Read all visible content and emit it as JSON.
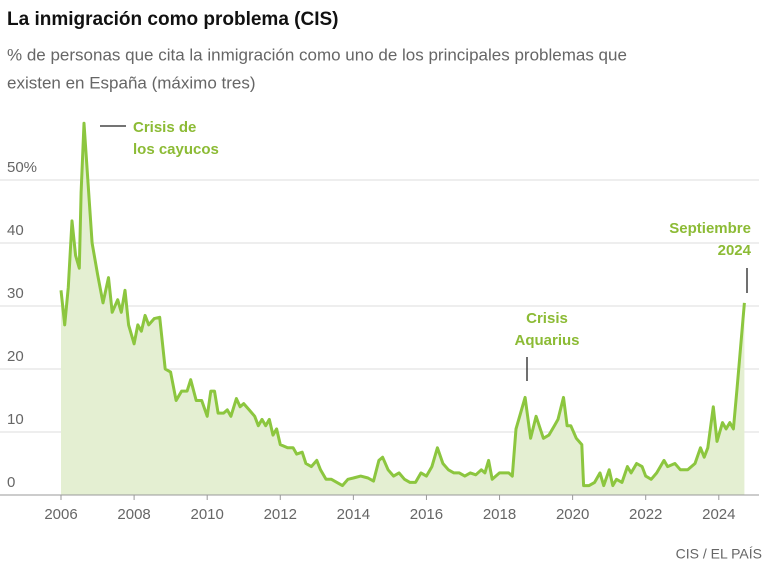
{
  "chart_data": {
    "type": "area",
    "title": "La inmigración como problema (CIS)",
    "subtitle": [
      "% de personas que cita la inmigración como uno de los principales problemas que",
      "existen en España (máximo tres)"
    ],
    "source": "CIS / EL PAÍS",
    "annotations": [
      [
        "Crisis de",
        "los cayucos"
      ],
      [
        "Crisis",
        "Aquarius"
      ],
      [
        "Septiembre",
        "2024"
      ]
    ],
    "color": "#8cc63f",
    "fill": "#e4efd2",
    "grid": true,
    "xlim": [
      2005.8,
      2025.1
    ],
    "xticks": [
      2006,
      2008,
      2010,
      2012,
      2014,
      2016,
      2018,
      2020,
      2022,
      2024
    ],
    "ylim": [
      0,
      62
    ],
    "yticks": [
      0,
      10,
      20,
      30,
      40,
      {
        "value": 50,
        "label": "50%"
      }
    ],
    "x": [
      2006.0,
      2006.1,
      2006.2,
      2006.3,
      2006.4,
      2006.5,
      2006.55,
      2006.63,
      2006.85,
      2007.0,
      2007.15,
      2007.3,
      2007.4,
      2007.55,
      2007.65,
      2007.75,
      2007.85,
      2008.0,
      2008.1,
      2008.2,
      2008.3,
      2008.4,
      2008.55,
      2008.7,
      2008.85,
      2009.0,
      2009.15,
      2009.3,
      2009.45,
      2009.55,
      2009.7,
      2009.85,
      2010.0,
      2010.1,
      2010.2,
      2010.3,
      2010.45,
      2010.55,
      2010.65,
      2010.8,
      2010.9,
      2011.0,
      2011.15,
      2011.3,
      2011.4,
      2011.5,
      2011.6,
      2011.7,
      2011.8,
      2011.9,
      2012.0,
      2012.2,
      2012.35,
      2012.45,
      2012.6,
      2012.7,
      2012.85,
      2013.0,
      2013.1,
      2013.25,
      2013.4,
      2013.55,
      2013.7,
      2013.85,
      2014.0,
      2014.2,
      2014.4,
      2014.55,
      2014.7,
      2014.8,
      2014.95,
      2015.1,
      2015.25,
      2015.4,
      2015.55,
      2015.7,
      2015.85,
      2016.0,
      2016.15,
      2016.3,
      2016.45,
      2016.6,
      2016.75,
      2016.9,
      2017.05,
      2017.2,
      2017.35,
      2017.5,
      2017.6,
      2017.7,
      2017.8,
      2018.0,
      2018.25,
      2018.35,
      2018.45,
      2018.7,
      2018.85,
      2019.0,
      2019.2,
      2019.35,
      2019.5,
      2019.6,
      2019.75,
      2019.85,
      2019.95,
      2020.1,
      2020.25,
      2020.3,
      2020.45,
      2020.6,
      2020.75,
      2020.85,
      2021.0,
      2021.1,
      2021.2,
      2021.35,
      2021.5,
      2021.6,
      2021.75,
      2021.9,
      2022.0,
      2022.15,
      2022.3,
      2022.5,
      2022.6,
      2022.8,
      2022.95,
      2023.15,
      2023.35,
      2023.5,
      2023.6,
      2023.7,
      2023.85,
      2023.95,
      2024.1,
      2024.2,
      2024.3,
      2024.4,
      2024.5,
      2024.7
    ],
    "values": [
      32.5,
      27,
      33,
      43.5,
      38,
      36,
      48,
      59,
      40,
      35,
      30.5,
      34.5,
      29,
      31,
      29,
      32.5,
      27,
      24,
      27,
      26,
      28.5,
      27,
      28,
      28.2,
      20,
      19.5,
      15,
      16.5,
      16.5,
      18.3,
      15,
      15,
      12.5,
      16.5,
      16.5,
      13,
      13,
      13.5,
      12.5,
      15.3,
      14,
      14.5,
      13.5,
      12.5,
      11,
      12,
      11,
      12,
      9.5,
      10.5,
      8,
      7.5,
      7.5,
      6.5,
      6.8,
      5,
      4.5,
      5.5,
      4,
      2.5,
      2.5,
      2,
      1.5,
      2.5,
      2.7,
      3,
      2.7,
      2.2,
      5.5,
      6,
      4,
      3,
      3.5,
      2.5,
      2,
      2,
      3.5,
      3,
      4.5,
      7.5,
      5,
      4,
      3.5,
      3.5,
      3,
      3.5,
      3.2,
      4,
      3.5,
      5.5,
      2.5,
      3.5,
      3.5,
      3,
      10.5,
      15.5,
      9,
      12.5,
      9,
      9.5,
      11,
      12,
      15.5,
      11,
      11,
      9,
      8,
      1.5,
      1.5,
      2,
      3.5,
      1.5,
      4,
      1.5,
      2.5,
      2,
      4.5,
      3.5,
      5,
      4.5,
      3,
      2.5,
      3.5,
      5.5,
      4.5,
      5,
      4,
      4,
      5,
      7.5,
      6,
      7.5,
      14,
      8.5,
      11.5,
      10.5,
      11.5,
      10.5,
      17,
      30.5
    ]
  }
}
